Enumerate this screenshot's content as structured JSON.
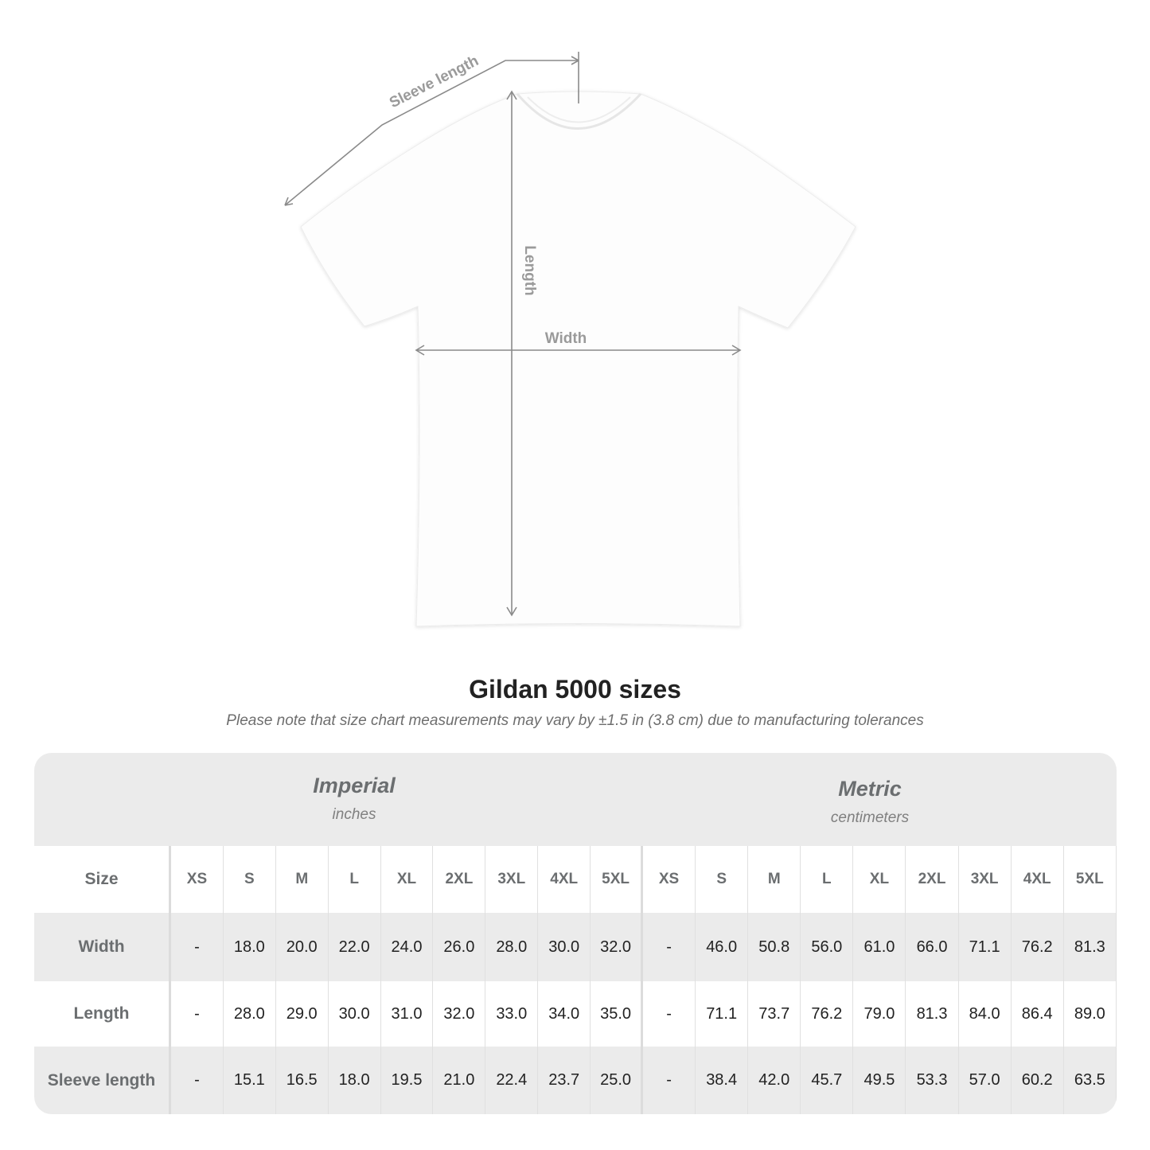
{
  "diagram": {
    "sleeve_label": "Sleeve length",
    "length_label": "Length",
    "width_label": "Width",
    "line_color": "#8a8a8a"
  },
  "title": "Gildan 5000 sizes",
  "subtitle": "Please note that size chart measurements may vary by ±1.5 in (3.8 cm) due to manufacturing tolerances",
  "table": {
    "imperial": {
      "name": "Imperial",
      "unit": "inches"
    },
    "metric": {
      "name": "Metric",
      "unit": "centimeters"
    },
    "size_label": "Size",
    "sizes": [
      "XS",
      "S",
      "M",
      "L",
      "XL",
      "2XL",
      "3XL",
      "4XL",
      "5XL"
    ],
    "rows": [
      {
        "label": "Width",
        "imperial": [
          "-",
          "18.0",
          "20.0",
          "22.0",
          "24.0",
          "26.0",
          "28.0",
          "30.0",
          "32.0"
        ],
        "metric": [
          "-",
          "46.0",
          "50.8",
          "56.0",
          "61.0",
          "66.0",
          "71.1",
          "76.2",
          "81.3"
        ]
      },
      {
        "label": "Length",
        "imperial": [
          "-",
          "28.0",
          "29.0",
          "30.0",
          "31.0",
          "32.0",
          "33.0",
          "34.0",
          "35.0"
        ],
        "metric": [
          "-",
          "71.1",
          "73.7",
          "76.2",
          "79.0",
          "81.3",
          "84.0",
          "86.4",
          "89.0"
        ]
      },
      {
        "label": "Sleeve length",
        "imperial": [
          "-",
          "15.1",
          "16.5",
          "18.0",
          "19.5",
          "21.0",
          "22.4",
          "23.7",
          "25.0"
        ],
        "metric": [
          "-",
          "38.4",
          "42.0",
          "45.7",
          "49.5",
          "53.3",
          "57.0",
          "60.2",
          "63.5"
        ]
      }
    ]
  }
}
